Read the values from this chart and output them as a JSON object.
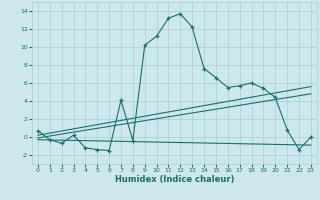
{
  "xlabel": "Humidex (Indice chaleur)",
  "background_color": "#cce8ec",
  "grid_color": "#aacdd4",
  "line_color": "#1a6e6a",
  "xlim": [
    -0.5,
    23.5
  ],
  "ylim": [
    -3.0,
    15.0
  ],
  "xticks": [
    0,
    1,
    2,
    3,
    4,
    5,
    6,
    7,
    8,
    9,
    10,
    11,
    12,
    13,
    14,
    15,
    16,
    17,
    18,
    19,
    20,
    21,
    22,
    23
  ],
  "yticks": [
    -2,
    0,
    2,
    4,
    6,
    8,
    10,
    12,
    14
  ],
  "series1_x": [
    0,
    1,
    2,
    3,
    4,
    5,
    6,
    7,
    8,
    9,
    10,
    11,
    12,
    13,
    14,
    15,
    16,
    17,
    18,
    19,
    20,
    21,
    22,
    23
  ],
  "series1_y": [
    0.7,
    -0.3,
    -0.7,
    0.2,
    -1.2,
    -1.4,
    -1.5,
    4.1,
    -0.4,
    10.2,
    11.2,
    13.2,
    13.7,
    12.2,
    7.6,
    6.6,
    5.5,
    5.7,
    6.0,
    5.4,
    4.4,
    0.8,
    -1.4,
    0.0
  ],
  "line1_x": [
    0,
    23
  ],
  "line1_y": [
    0.2,
    5.6
  ],
  "line2_x": [
    0,
    23
  ],
  "line2_y": [
    -0.1,
    4.8
  ],
  "line3_x": [
    0,
    23
  ],
  "line3_y": [
    -0.3,
    -0.9
  ]
}
